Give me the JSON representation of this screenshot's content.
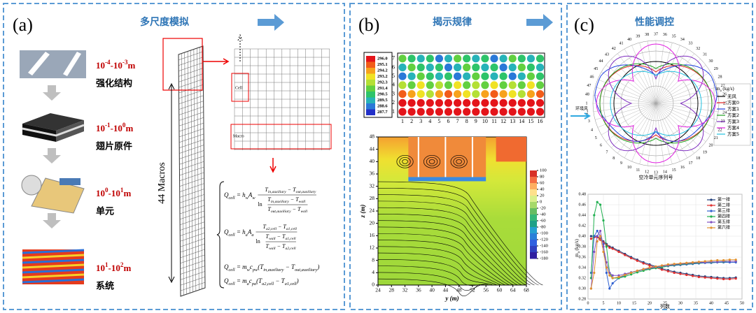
{
  "panels": {
    "a": {
      "label": "(a)",
      "title": "多尺度模拟",
      "scale_base": "10",
      "scale_sep": "-",
      "scale_unit": "m",
      "levels": [
        {
          "exp_from": "-4",
          "exp_to": "-3",
          "name": "强化结构"
        },
        {
          "exp_from": "-1",
          "exp_to": "0",
          "name": "翅片原件"
        },
        {
          "exp_from": "0",
          "exp_to": "1",
          "name": "单元"
        },
        {
          "exp_from": "1",
          "exp_to": "2",
          "name": "系统"
        }
      ],
      "mesh_label": "44 Macros",
      "cell_label": "Cell",
      "macro_label": "Macro",
      "equations": [
        {
          "expr": [
            {
              "t": "Q",
              "s": "cell"
            },
            {
              "t": " = h",
              "s": "w"
            },
            {
              "t": "A",
              "s": "w"
            }
          ],
          "num": [
            {
              "t": "T",
              "s": "in,auxiliary"
            },
            {
              "t": " − T",
              "s": "out,auxiliary"
            }
          ],
          "ln": "ln",
          "inner_num": [
            {
              "t": "T",
              "s": "in,auxiliary"
            },
            {
              "t": " − T",
              "s": "wall"
            }
          ],
          "inner_den": [
            {
              "t": "T",
              "s": "out,auxiliary"
            },
            {
              "t": " − T",
              "s": "wall"
            }
          ]
        },
        {
          "expr": [
            {
              "t": "Q",
              "s": "cell"
            },
            {
              "t": " = h",
              "s": "a"
            },
            {
              "t": "A",
              "s": "a"
            }
          ],
          "num": [
            {
              "t": "T",
              "s": "a2,cell"
            },
            {
              "t": " − T",
              "s": "a1,cell"
            }
          ],
          "ln": "ln",
          "inner_num": [
            {
              "t": "T",
              "s": "wall"
            },
            {
              "t": " − T",
              "s": "a1,cell"
            }
          ],
          "inner_den": [
            {
              "t": "T",
              "s": "wall"
            },
            {
              "t": " − T",
              "s": "a2,cell"
            }
          ]
        },
        {
          "expr": [
            {
              "t": "Q",
              "s": "cell"
            },
            {
              "t": " = m",
              "s": "w"
            },
            {
              "t": "c",
              "s": "pw"
            },
            {
              "t": "(T",
              "s": "in,auxiliary"
            },
            {
              "t": " − T",
              "s": "out,auxiliary"
            },
            {
              "t": ")"
            }
          ]
        },
        {
          "expr": [
            {
              "t": "Q",
              "s": "cell"
            },
            {
              "t": " = m",
              "s": "a"
            },
            {
              "t": "c",
              "s": "pa"
            },
            {
              "t": "(T",
              "s": "a2,cell"
            },
            {
              "t": " − T",
              "s": "a1,cell"
            },
            {
              "t": ")"
            }
          ]
        }
      ]
    },
    "b": {
      "label": "(b)",
      "title": "揭示规律",
      "heatmap": {
        "colorbar_labels": [
          "296.0",
          "295.1",
          "294.2",
          "293.2",
          "292.3",
          "291.4",
          "290.5",
          "289.5",
          "288.6",
          "287.7"
        ],
        "rows": [
          1,
          2,
          3,
          4,
          5,
          6,
          7
        ],
        "cols": [
          1,
          2,
          3,
          4,
          5,
          6,
          7,
          8,
          9,
          10,
          11,
          12,
          13,
          14,
          15,
          16
        ]
      },
      "flow": {
        "xlabel": "y (m)",
        "ylabel": "z (m)",
        "xlim": [
          24,
          68
        ],
        "ylim": [
          0,
          48
        ],
        "xticks": [
          24,
          28,
          32,
          36,
          40,
          44,
          48,
          52,
          56,
          60,
          64,
          68
        ],
        "yticks": [
          0,
          4,
          8,
          12,
          16,
          20,
          24,
          28,
          32,
          36,
          40,
          44,
          48
        ],
        "colorbar_ticks": [
          100,
          80,
          60,
          40,
          20,
          0,
          -20,
          -40,
          -60,
          -80,
          -100,
          -120,
          -140,
          -160,
          -180
        ]
      }
    },
    "c": {
      "label": "(c)",
      "title": "性能调控",
      "polar": {
        "angle_labels": [
          1,
          2,
          3,
          4,
          5,
          6,
          7,
          8,
          9,
          10,
          11,
          12,
          13,
          14,
          15,
          16,
          17,
          18,
          19,
          20,
          21,
          22,
          23,
          24,
          25,
          26,
          27,
          28,
          29,
          30,
          31,
          32,
          33,
          34,
          35,
          36,
          37,
          38,
          39,
          40,
          41,
          42,
          43,
          44,
          45,
          46,
          47,
          48
        ],
        "wind_label": "环境风",
        "caption": "空冷单元序列号",
        "legend_title": [
          {
            "t": "m",
            "s": "a"
          },
          {
            "t": " (kg/s)"
          }
        ],
        "series": [
          {
            "name": "无风",
            "color": "#000000"
          },
          {
            "name": "方案0",
            "color": "#e02020"
          },
          {
            "name": "方案1",
            "color": "#2040e0"
          },
          {
            "name": "方案2",
            "color": "#20a020"
          },
          {
            "name": "方案3",
            "color": "#8030c0"
          },
          {
            "name": "方案4",
            "color": "#e020e0"
          },
          {
            "name": "方案5",
            "color": "#20c0e0"
          }
        ]
      },
      "line_chart": {
        "type": "line",
        "xlabel": "列数",
        "ylabel": [
          {
            "t": "m",
            "s": "a"
          },
          {
            "t": " (kg/s)"
          }
        ],
        "x": [
          1,
          2,
          3,
          4,
          5,
          6,
          7,
          8,
          10,
          12,
          14,
          16,
          18,
          20,
          22,
          24,
          26,
          28,
          30,
          32,
          34,
          36,
          38,
          40,
          42,
          44,
          46,
          48
        ],
        "xlim": [
          0,
          50
        ],
        "ylim": [
          0.28,
          0.48
        ],
        "xticks": [
          0,
          5,
          10,
          15,
          20,
          25,
          30,
          35,
          40,
          45,
          50
        ],
        "yticks": [
          {
            "value": 0.28,
            "label": "0.28"
          },
          {
            "value": 0.3,
            "label": "0.30"
          },
          {
            "value": 0.32,
            "label": "0.32"
          },
          {
            "value": 0.34,
            "label": "0.34"
          },
          {
            "value": 0.36,
            "label": "0.36"
          },
          {
            "value": 0.38,
            "label": "0.38"
          },
          {
            "value": 0.4,
            "label": "0.40"
          },
          {
            "value": 0.42,
            "label": "0.42"
          },
          {
            "value": 0.44,
            "label": "0.44"
          },
          {
            "value": 0.46,
            "label": "0.46"
          },
          {
            "value": 0.48,
            "label": "0.48"
          }
        ],
        "series": [
          {
            "name": "第一排",
            "color": "#1f3d7a",
            "values": [
              0.4,
              0.4,
              0.4,
              0.395,
              0.39,
              0.385,
              0.38,
              0.378,
              0.372,
              0.366,
              0.36,
              0.355,
              0.35,
              0.346,
              0.342,
              0.338,
              0.335,
              0.332,
              0.33,
              0.328,
              0.326,
              0.324,
              0.323,
              0.322,
              0.321,
              0.32,
              0.32,
              0.321
            ]
          },
          {
            "name": "第二排",
            "color": "#e03030",
            "values": [
              0.395,
              0.398,
              0.398,
              0.393,
              0.388,
              0.383,
              0.378,
              0.376,
              0.37,
              0.364,
              0.358,
              0.353,
              0.348,
              0.344,
              0.34,
              0.336,
              0.333,
              0.33,
              0.328,
              0.326,
              0.324,
              0.322,
              0.321,
              0.32,
              0.319,
              0.318,
              0.318,
              0.319
            ]
          },
          {
            "name": "第三排",
            "color": "#3060d0",
            "values": [
              0.33,
              0.4,
              0.41,
              0.4,
              0.385,
              0.33,
              0.3,
              0.31,
              0.32,
              0.325,
              0.33,
              0.333,
              0.336,
              0.338,
              0.34,
              0.341,
              0.343,
              0.344,
              0.345,
              0.346,
              0.347,
              0.348,
              0.349,
              0.349,
              0.35,
              0.35,
              0.35,
              0.35
            ]
          },
          {
            "name": "第四排",
            "color": "#20b050",
            "values": [
              0.32,
              0.44,
              0.465,
              0.46,
              0.43,
              0.38,
              0.33,
              0.32,
              0.32,
              0.323,
              0.327,
              0.331,
              0.334,
              0.337,
              0.339,
              0.341,
              0.343,
              0.345,
              0.346,
              0.347,
              0.348,
              0.349,
              0.35,
              0.35,
              0.351,
              0.351,
              0.352,
              0.352
            ]
          },
          {
            "name": "第五排",
            "color": "#8050c0",
            "values": [
              0.3,
              0.37,
              0.4,
              0.41,
              0.38,
              0.35,
              0.33,
              0.325,
              0.325,
              0.328,
              0.331,
              0.334,
              0.337,
              0.339,
              0.341,
              0.343,
              0.344,
              0.346,
              0.347,
              0.348,
              0.349,
              0.35,
              0.35,
              0.351,
              0.351,
              0.352,
              0.352,
              0.352
            ]
          },
          {
            "name": "第六排",
            "color": "#e09030",
            "values": [
              0.3,
              0.33,
              0.39,
              0.4,
              0.37,
              0.34,
              0.325,
              0.32,
              0.322,
              0.326,
              0.33,
              0.334,
              0.337,
              0.34,
              0.342,
              0.344,
              0.346,
              0.347,
              0.348,
              0.349,
              0.35,
              0.351,
              0.352,
              0.353,
              0.354,
              0.354,
              0.355,
              0.355
            ]
          }
        ]
      }
    }
  }
}
